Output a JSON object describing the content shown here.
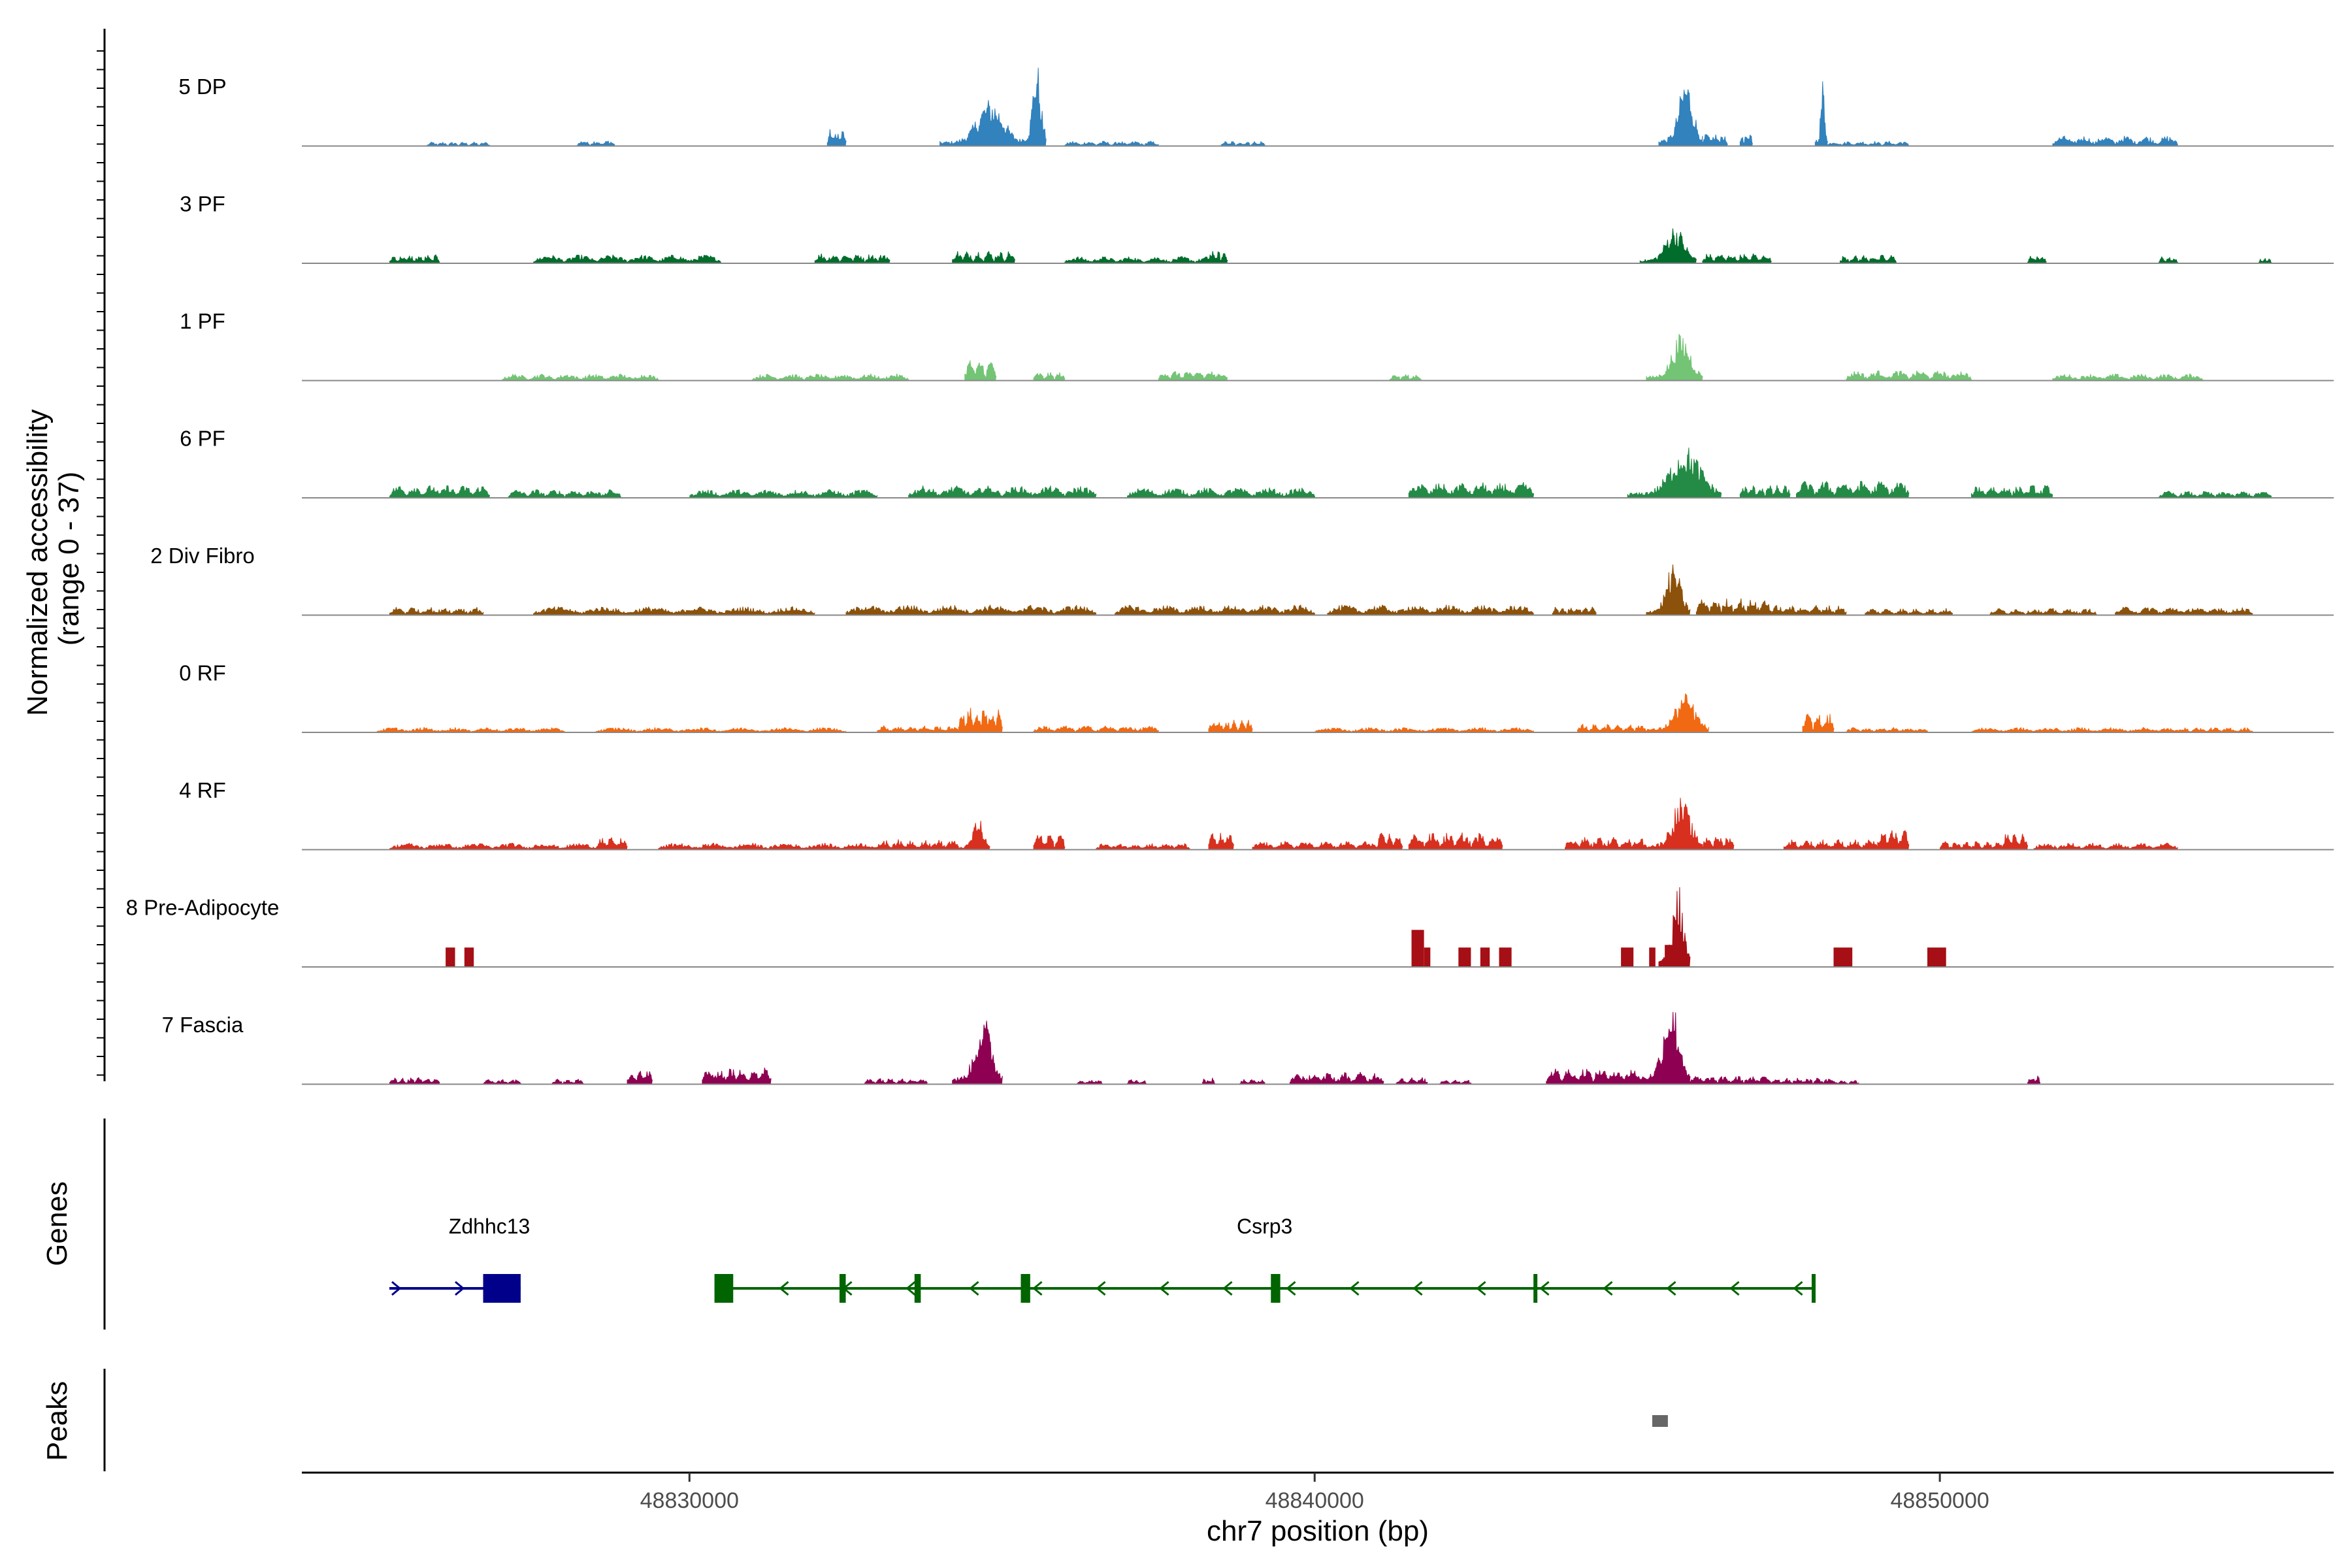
{
  "chart_data": {
    "type": "area",
    "title": "",
    "ylabel": "Normalized accessibility\n(range 0 - 37)",
    "y_range": [
      0,
      37
    ],
    "xlabel": "chr7 position (bp)",
    "xlim": [
      48823800,
      48856300
    ],
    "x_ticks": [
      48830000,
      48840000,
      48850000
    ],
    "x_tick_labels": [
      "48830000",
      "48840000",
      "48850000"
    ],
    "panel_labels": {
      "genes": "Genes",
      "peaks": "Peaks"
    },
    "tracks": [
      {
        "name": "5 DP",
        "color": "#3182BD",
        "peaks": [
          [
            48825800,
            48826800,
            0.05
          ],
          [
            48828200,
            48828800,
            0.07
          ],
          [
            48832200,
            48832500,
            0.2
          ],
          [
            48834000,
            48835300,
            0.55
          ],
          [
            48835300,
            48835700,
            1.0
          ],
          [
            48836000,
            48837500,
            0.06
          ],
          [
            48838500,
            48839200,
            0.06
          ],
          [
            48845500,
            48846200,
            0.8
          ],
          [
            48846200,
            48846600,
            0.15
          ],
          [
            48846800,
            48847000,
            0.15
          ],
          [
            48848000,
            48848200,
            0.8
          ],
          [
            48848200,
            48849500,
            0.06
          ],
          [
            48851800,
            48853800,
            0.12
          ]
        ]
      },
      {
        "name": "3 PF",
        "color": "#006D2C",
        "peaks": [
          [
            48825200,
            48826000,
            0.1
          ],
          [
            48827500,
            48830500,
            0.1
          ],
          [
            48832000,
            48833200,
            0.12
          ],
          [
            48834200,
            48835200,
            0.15
          ],
          [
            48836000,
            48838500,
            0.08
          ],
          [
            48838300,
            48838600,
            0.15
          ],
          [
            48845200,
            48846100,
            0.45
          ],
          [
            48846200,
            48847300,
            0.12
          ],
          [
            48848400,
            48849300,
            0.1
          ],
          [
            48851400,
            48851700,
            0.1
          ],
          [
            48853500,
            48853800,
            0.08
          ],
          [
            48855100,
            48855300,
            0.06
          ]
        ]
      },
      {
        "name": "1 PF",
        "color": "#74C476",
        "peaks": [
          [
            48827000,
            48829500,
            0.08
          ],
          [
            48831000,
            48833500,
            0.08
          ],
          [
            48834400,
            48834900,
            0.25
          ],
          [
            48835500,
            48836000,
            0.1
          ],
          [
            48837500,
            48838600,
            0.12
          ],
          [
            48841200,
            48841700,
            0.08
          ],
          [
            48845300,
            48846200,
            0.55
          ],
          [
            48848500,
            48850500,
            0.12
          ],
          [
            48851800,
            48854200,
            0.08
          ]
        ]
      },
      {
        "name": "6 PF",
        "color": "#238B45",
        "peaks": [
          [
            48825200,
            48826800,
            0.15
          ],
          [
            48827100,
            48828900,
            0.1
          ],
          [
            48830000,
            48833000,
            0.1
          ],
          [
            48833500,
            48836500,
            0.14
          ],
          [
            48837000,
            48840000,
            0.12
          ],
          [
            48841500,
            48843500,
            0.18
          ],
          [
            48845000,
            48846500,
            0.6
          ],
          [
            48846800,
            48847600,
            0.15
          ],
          [
            48847700,
            48849500,
            0.2
          ],
          [
            48850500,
            48851800,
            0.15
          ],
          [
            48853500,
            48855300,
            0.08
          ]
        ]
      },
      {
        "name": "2 Div Fibro",
        "color": "#8C510A",
        "peaks": [
          [
            48825200,
            48826700,
            0.1
          ],
          [
            48827500,
            48832000,
            0.1
          ],
          [
            48832500,
            48836500,
            0.12
          ],
          [
            48836800,
            48840000,
            0.12
          ],
          [
            48840200,
            48843500,
            0.12
          ],
          [
            48843800,
            48844500,
            0.1
          ],
          [
            48845300,
            48846000,
            0.6
          ],
          [
            48846100,
            48847300,
            0.2
          ],
          [
            48847300,
            48848500,
            0.12
          ],
          [
            48848800,
            48850200,
            0.08
          ],
          [
            48850800,
            48852500,
            0.08
          ],
          [
            48852800,
            48855000,
            0.1
          ]
        ]
      },
      {
        "name": "0 RF",
        "color": "#F16913",
        "peaks": [
          [
            48825000,
            48828000,
            0.06
          ],
          [
            48828500,
            48832500,
            0.06
          ],
          [
            48833000,
            48834300,
            0.08
          ],
          [
            48834300,
            48835000,
            0.3
          ],
          [
            48835500,
            48837500,
            0.08
          ],
          [
            48838300,
            48839000,
            0.15
          ],
          [
            48840000,
            48843500,
            0.06
          ],
          [
            48844200,
            48845300,
            0.1
          ],
          [
            48845300,
            48846300,
            0.45
          ],
          [
            48847800,
            48848300,
            0.22
          ],
          [
            48848500,
            48849800,
            0.06
          ],
          [
            48850500,
            48853500,
            0.06
          ],
          [
            48853500,
            48855000,
            0.06
          ]
        ]
      },
      {
        "name": "4 RF",
        "color": "#D7301F",
        "peaks": [
          [
            48825200,
            48828500,
            0.08
          ],
          [
            48828500,
            48829000,
            0.15
          ],
          [
            48829500,
            48833000,
            0.08
          ],
          [
            48833000,
            48834300,
            0.12
          ],
          [
            48834300,
            48834800,
            0.38
          ],
          [
            48835500,
            48836000,
            0.2
          ],
          [
            48836500,
            48838000,
            0.08
          ],
          [
            48838300,
            48838700,
            0.2
          ],
          [
            48839000,
            48841000,
            0.1
          ],
          [
            48841000,
            48841400,
            0.2
          ],
          [
            48841500,
            48843000,
            0.2
          ],
          [
            48844000,
            48845300,
            0.15
          ],
          [
            48845300,
            48846200,
            0.6
          ],
          [
            48846200,
            48846700,
            0.18
          ],
          [
            48847500,
            48849000,
            0.12
          ],
          [
            48849000,
            48849500,
            0.25
          ],
          [
            48850000,
            48851000,
            0.1
          ],
          [
            48851000,
            48851400,
            0.2
          ],
          [
            48851500,
            48853800,
            0.08
          ]
        ]
      },
      {
        "name": "8 Pre-Adipocyte",
        "color": "#A50F15",
        "blocks": [
          [
            48826100,
            48826250,
            0.22
          ],
          [
            48826400,
            48826550,
            0.22
          ],
          [
            48841550,
            48841750,
            0.42
          ],
          [
            48841750,
            48841850,
            0.22
          ],
          [
            48842300,
            48842500,
            0.22
          ],
          [
            48842650,
            48842800,
            0.22
          ],
          [
            48842950,
            48843150,
            0.22
          ],
          [
            48844900,
            48845100,
            0.22
          ],
          [
            48845350,
            48845450,
            0.22
          ],
          [
            48845600,
            48845950,
            0.25
          ],
          [
            48848300,
            48848600,
            0.22
          ],
          [
            48849800,
            48850100,
            0.22
          ]
        ],
        "peaks": [
          [
            48845500,
            48846000,
            1.0
          ]
        ]
      },
      {
        "name": "7 Fascia",
        "color": "#8E0152",
        "peaks": [
          [
            48825200,
            48826000,
            0.08
          ],
          [
            48826700,
            48827300,
            0.06
          ],
          [
            48827800,
            48828300,
            0.06
          ],
          [
            48829000,
            48829400,
            0.18
          ],
          [
            48830200,
            48831300,
            0.2
          ],
          [
            48832800,
            48833800,
            0.08
          ],
          [
            48834200,
            48835000,
            0.8
          ],
          [
            48836200,
            48836600,
            0.06
          ],
          [
            48837000,
            48837300,
            0.06
          ],
          [
            48838200,
            48838400,
            0.08
          ],
          [
            48838800,
            48839200,
            0.06
          ],
          [
            48839600,
            48841100,
            0.14
          ],
          [
            48841300,
            48841800,
            0.08
          ],
          [
            48842000,
            48842500,
            0.06
          ],
          [
            48843700,
            48845200,
            0.2
          ],
          [
            48845200,
            48846000,
            1.0
          ],
          [
            48846000,
            48847300,
            0.1
          ],
          [
            48847300,
            48848300,
            0.08
          ],
          [
            48848200,
            48848700,
            0.05
          ],
          [
            48851400,
            48851600,
            0.1
          ]
        ]
      }
    ],
    "genes": [
      {
        "name": "Zdhhc13",
        "strand": "+",
        "color": "#00008B",
        "start": 48825200,
        "end": 48827300,
        "exons": [
          [
            48826700,
            48827300
          ]
        ]
      },
      {
        "name": "Csrp3",
        "strand": "-",
        "color": "#006400",
        "start": 48830400,
        "end": 48848000,
        "exons": [
          [
            48830400,
            48830700
          ],
          [
            48832400,
            48832500
          ],
          [
            48833600,
            48833700
          ],
          [
            48835300,
            48835450
          ],
          [
            48839300,
            48839450
          ],
          [
            48843500,
            48843550
          ],
          [
            48847950,
            48848000
          ]
        ]
      }
    ],
    "peaks_panel": [
      {
        "start": 48845400,
        "end": 48845650,
        "color": "#666666"
      }
    ],
    "axis_color": "#000000",
    "baseline_color": "#888888"
  }
}
